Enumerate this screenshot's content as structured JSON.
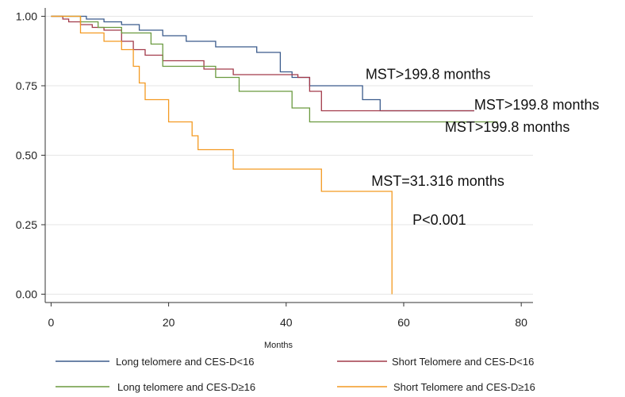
{
  "chart_data": {
    "type": "line",
    "xlabel": "Months",
    "xlim": [
      -1,
      82
    ],
    "ylim": [
      -0.03,
      1.03
    ],
    "xticks": [
      0,
      20,
      40,
      60,
      80
    ],
    "yticks": [
      0.0,
      0.25,
      0.5,
      0.75,
      1.0
    ],
    "xtick_labels": [
      "0",
      "20",
      "40",
      "60",
      "80"
    ],
    "ytick_labels": [
      "0.00",
      "0.25",
      "0.50",
      "0.75",
      "1.00"
    ],
    "legend_position": "bottom",
    "series": [
      {
        "name": "Long  telomere and  CES-D<16",
        "color": "#3b5b8c",
        "points": [
          [
            0,
            1.0
          ],
          [
            6,
            1.0
          ],
          [
            6,
            0.99
          ],
          [
            9,
            0.99
          ],
          [
            9,
            0.98
          ],
          [
            12,
            0.98
          ],
          [
            12,
            0.97
          ],
          [
            15,
            0.97
          ],
          [
            15,
            0.95
          ],
          [
            19,
            0.95
          ],
          [
            19,
            0.93
          ],
          [
            23,
            0.93
          ],
          [
            23,
            0.91
          ],
          [
            28,
            0.91
          ],
          [
            28,
            0.89
          ],
          [
            35,
            0.89
          ],
          [
            35,
            0.87
          ],
          [
            39,
            0.87
          ],
          [
            39,
            0.8
          ],
          [
            41,
            0.8
          ],
          [
            41,
            0.78
          ],
          [
            44,
            0.78
          ],
          [
            44,
            0.75
          ],
          [
            53,
            0.75
          ],
          [
            53,
            0.7
          ],
          [
            56,
            0.7
          ],
          [
            56,
            0.66
          ],
          [
            72,
            0.66
          ]
        ]
      },
      {
        "name": "Short Telomere and CES-D<16",
        "color": "#a23a4a",
        "points": [
          [
            0,
            1.0
          ],
          [
            2,
            1.0
          ],
          [
            2,
            0.99
          ],
          [
            3,
            0.99
          ],
          [
            3,
            0.98
          ],
          [
            5,
            0.98
          ],
          [
            5,
            0.97
          ],
          [
            7,
            0.97
          ],
          [
            7,
            0.96
          ],
          [
            9,
            0.96
          ],
          [
            9,
            0.95
          ],
          [
            12,
            0.95
          ],
          [
            12,
            0.91
          ],
          [
            14,
            0.91
          ],
          [
            14,
            0.88
          ],
          [
            16,
            0.88
          ],
          [
            16,
            0.86
          ],
          [
            19,
            0.86
          ],
          [
            19,
            0.84
          ],
          [
            26,
            0.84
          ],
          [
            26,
            0.81
          ],
          [
            31,
            0.81
          ],
          [
            31,
            0.79
          ],
          [
            42,
            0.79
          ],
          [
            42,
            0.78
          ],
          [
            44,
            0.78
          ],
          [
            44,
            0.73
          ],
          [
            46,
            0.73
          ],
          [
            46,
            0.66
          ],
          [
            72,
            0.66
          ]
        ]
      },
      {
        "name": "Long telomere and CES-D≥16",
        "color": "#6a9a3f",
        "points": [
          [
            0,
            1.0
          ],
          [
            5,
            1.0
          ],
          [
            5,
            0.98
          ],
          [
            8,
            0.98
          ],
          [
            8,
            0.96
          ],
          [
            12,
            0.96
          ],
          [
            12,
            0.94
          ],
          [
            17,
            0.94
          ],
          [
            17,
            0.9
          ],
          [
            19,
            0.9
          ],
          [
            19,
            0.82
          ],
          [
            28,
            0.82
          ],
          [
            28,
            0.78
          ],
          [
            32,
            0.78
          ],
          [
            32,
            0.73
          ],
          [
            41,
            0.73
          ],
          [
            41,
            0.67
          ],
          [
            44,
            0.67
          ],
          [
            44,
            0.62
          ],
          [
            76,
            0.62
          ]
        ]
      },
      {
        "name": "Short Telomere and  CES-D≥16",
        "color": "#f39a22",
        "points": [
          [
            0,
            1.0
          ],
          [
            5,
            1.0
          ],
          [
            5,
            0.94
          ],
          [
            9,
            0.94
          ],
          [
            9,
            0.91
          ],
          [
            12,
            0.91
          ],
          [
            12,
            0.88
          ],
          [
            14,
            0.88
          ],
          [
            14,
            0.82
          ],
          [
            15,
            0.82
          ],
          [
            15,
            0.76
          ],
          [
            16,
            0.76
          ],
          [
            16,
            0.7
          ],
          [
            20,
            0.7
          ],
          [
            20,
            0.62
          ],
          [
            24,
            0.62
          ],
          [
            24,
            0.57
          ],
          [
            25,
            0.57
          ],
          [
            25,
            0.52
          ],
          [
            31,
            0.52
          ],
          [
            31,
            0.45
          ],
          [
            46,
            0.45
          ],
          [
            46,
            0.37
          ],
          [
            58,
            0.37
          ],
          [
            58,
            0.0
          ]
        ]
      }
    ],
    "annotations": [
      {
        "text": "MST>199.8 months",
        "x": 53.5,
        "y": 0.775
      },
      {
        "text": "MST>199.8 months",
        "x": 72,
        "y": 0.665
      },
      {
        "text": "MST>199.8 months",
        "x": 67,
        "y": 0.585
      },
      {
        "text": "MST=31.316 months",
        "x": 54.5,
        "y": 0.39
      },
      {
        "text": "P<0.001",
        "x": 61.5,
        "y": 0.25
      }
    ]
  }
}
